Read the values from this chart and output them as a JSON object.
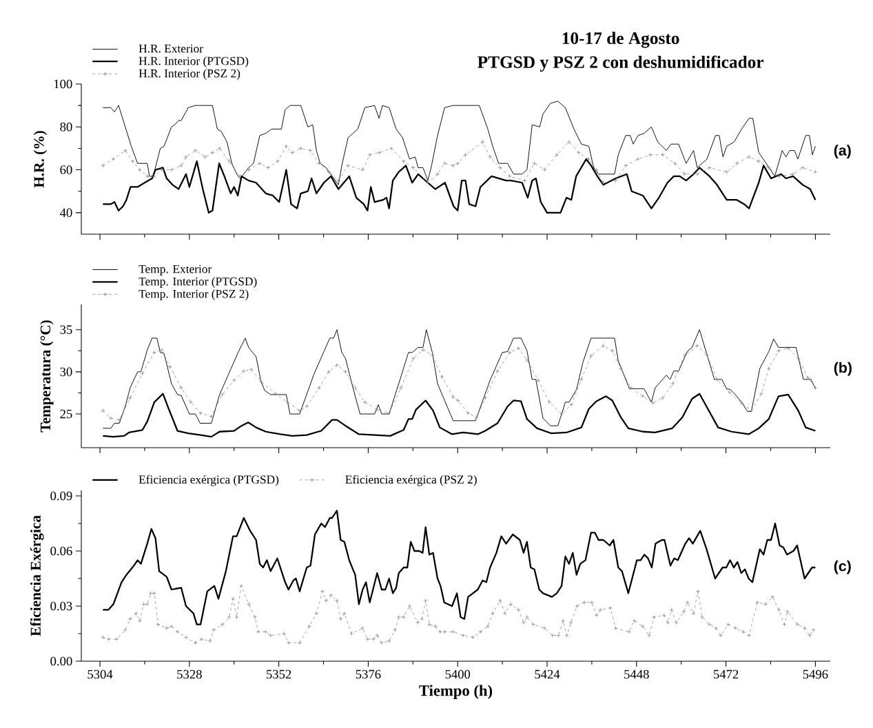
{
  "chart_data": [
    {
      "type": "line",
      "title": "10-17 de Agosto",
      "subtitle": "PTGSD y PSZ 2 con deshumidificador",
      "ylabel": "H.R. (%)",
      "annotations": [
        "(a)"
      ],
      "legend": "top left",
      "tick_labels": "y",
      "xlim": [
        5299,
        5500
      ],
      "xticks": [
        5304,
        5328,
        5352,
        5376,
        5400,
        5424,
        5448,
        5472,
        5496
      ],
      "ylim": [
        30,
        100
      ],
      "yticks": [
        40,
        60,
        80,
        100
      ],
      "series": [
        {
          "name": "H.R. Exterior",
          "color": "#000000",
          "x": [
            5304.8,
            5306.9,
            5307.9,
            5309,
            5310.8,
            5312.4,
            5314.1,
            5316.7,
            5317.3,
            5318.3,
            5320.2,
            5321.2,
            5323.2,
            5324.1,
            5325.1,
            5325.8,
            5327.7,
            5329.6,
            5331.6,
            5334.2,
            5335.5,
            5336.5,
            5338.1,
            5339.4,
            5340.7,
            5341.7,
            5343.9,
            5345.2,
            5346.9,
            5348.5,
            5350.1,
            5352.7,
            5353.7,
            5355,
            5357.9,
            5359.8,
            5361.1,
            5362.1,
            5363.1,
            5364.7,
            5368,
            5368.9,
            5370.6,
            5371.9,
            5373.2,
            5375.1,
            5377.7,
            5378.9,
            5379.8,
            5381.6,
            5383.5,
            5385.2,
            5387.1,
            5388.6,
            5389.4,
            5390.7,
            5392,
            5393,
            5394.6,
            5396.5,
            5398.8,
            5405.8,
            5408.1,
            5409.4,
            5411,
            5413.4,
            5415,
            5417.3,
            5418.6,
            5420,
            5422,
            5422.9,
            5424.9,
            5426.9,
            5428.9,
            5431.2,
            5433.2,
            5435.2,
            5436.5,
            5437.8,
            5442.1,
            5443.1,
            5445.1,
            5446.3,
            5447.1,
            5448.4,
            5450,
            5452,
            5453.7,
            5456,
            5457.3,
            5459.3,
            5461.3,
            5463.3,
            5464.3,
            5466.9,
            5469.2,
            5470.2,
            5471.2,
            5472.2,
            5474.2,
            5476.2,
            5478.2,
            5479.2,
            5480.8,
            5482.8,
            5485.1,
            5487.1,
            5488.1,
            5489.1,
            5490.4,
            5491.3,
            5493.4,
            5494.4,
            5495.2,
            5496
          ],
          "values": [
            89,
            89,
            87,
            90,
            80,
            71,
            63,
            63,
            57,
            57,
            70,
            71,
            80,
            81,
            83,
            83,
            89,
            90,
            90,
            90,
            79,
            78,
            73,
            63,
            58,
            56,
            61,
            63,
            76,
            77,
            79,
            79,
            88,
            90,
            90,
            80,
            81,
            69,
            63,
            61,
            53,
            62,
            75,
            77,
            79,
            89,
            90,
            84,
            90,
            89,
            79,
            75,
            65,
            66,
            61,
            61,
            55,
            62,
            76,
            89,
            90,
            90,
            79,
            71,
            63,
            63,
            58,
            58,
            60,
            81,
            80,
            86,
            91,
            92,
            89,
            79,
            72,
            71,
            61,
            58,
            58,
            67,
            76,
            76,
            72,
            76,
            77,
            80,
            73,
            69,
            72,
            72,
            63,
            69,
            61,
            65,
            76,
            76,
            66,
            71,
            73,
            79,
            84,
            84,
            68,
            63,
            57,
            69,
            66,
            69,
            69,
            65,
            76,
            76,
            67,
            71
          ]
        },
        {
          "name": "H.R. Interior (PTGSD)",
          "color": "#000000",
          "x": [
            5304.8,
            5306.9,
            5307.9,
            5309,
            5310.2,
            5311.1,
            5312.2,
            5314.1,
            5316,
            5318,
            5318.9,
            5320.9,
            5321.9,
            5323.5,
            5325.1,
            5327.1,
            5328,
            5330,
            5331.6,
            5333.2,
            5334.2,
            5336,
            5337.4,
            5339.1,
            5340,
            5341,
            5342,
            5343.9,
            5345.9,
            5348.5,
            5350.4,
            5352.1,
            5354,
            5355.3,
            5356.9,
            5357.9,
            5359.8,
            5360.8,
            5362.1,
            5364.1,
            5366,
            5368,
            5370.9,
            5372.8,
            5374.8,
            5375.8,
            5376.7,
            5377.7,
            5380,
            5380.9,
            5381.6,
            5382.6,
            5384.2,
            5386.1,
            5387.8,
            5389.4,
            5392,
            5394,
            5396.6,
            5398.9,
            5400,
            5401.1,
            5402.1,
            5403.1,
            5404.8,
            5406.1,
            5409.1,
            5413,
            5414.3,
            5417.3,
            5418.8,
            5420,
            5421,
            5422.3,
            5424,
            5427.6,
            5429.2,
            5430.5,
            5431.8,
            5434.5,
            5435.8,
            5437.5,
            5439.1,
            5442.4,
            5445.4,
            5446.7,
            5449.7,
            5452,
            5454,
            5456.3,
            5458,
            5459.6,
            5461.3,
            5463.3,
            5464.9,
            5467.6,
            5469.6,
            5472.2,
            5474.9,
            5476.9,
            5478.2,
            5479.5,
            5480.8,
            5482.1,
            5484.1,
            5486.8,
            5488.1,
            5490,
            5492.6,
            5494.6,
            5496
          ],
          "values": [
            44,
            44,
            45,
            41,
            43,
            46,
            52,
            52,
            54,
            56,
            60,
            61,
            56,
            53,
            51,
            58,
            52,
            64,
            51,
            40,
            41,
            63,
            57,
            49,
            52,
            48,
            57,
            55,
            54,
            49,
            48,
            45,
            60,
            44,
            42,
            49,
            50,
            56,
            49,
            54,
            57,
            51,
            57,
            47,
            44,
            41,
            52,
            45,
            46,
            47,
            42,
            55,
            59,
            62,
            54,
            58,
            54,
            51,
            54,
            43,
            41,
            55,
            55,
            44,
            43,
            52,
            57,
            55,
            55,
            54,
            47,
            55,
            56,
            45,
            40,
            40,
            47,
            46,
            57,
            65,
            62,
            57,
            53,
            56,
            58,
            50,
            48,
            42,
            47,
            54,
            57,
            57,
            55,
            58,
            61,
            57,
            53,
            46,
            46,
            44,
            42,
            48,
            54,
            62,
            56,
            58,
            56,
            57,
            53,
            51,
            46
          ]
        },
        {
          "name": "H.R. Interior (PSZ 2)",
          "color": "#8c8c8c",
          "marker": "cross",
          "line_style": "dashed",
          "x": [
            5304.8,
            5307.6,
            5310.8,
            5312.8,
            5314.7,
            5316.7,
            5318.6,
            5320.6,
            5323.2,
            5325.8,
            5327.1,
            5329.6,
            5332.2,
            5334.2,
            5336.1,
            5338.7,
            5341.3,
            5343.9,
            5346.9,
            5349.1,
            5351.7,
            5354,
            5355.6,
            5357.9,
            5360.5,
            5362.8,
            5365.4,
            5368,
            5370.6,
            5374.5,
            5376.4,
            5379,
            5382.2,
            5385.5,
            5388.1,
            5392,
            5394.6,
            5396.5,
            5398.8,
            5400,
            5402.1,
            5406.7,
            5408.7,
            5411.4,
            5414,
            5418,
            5420.6,
            5423.3,
            5426.6,
            5429.9,
            5432.5,
            5435.2,
            5437.2,
            5439.1,
            5442.4,
            5445.1,
            5448.4,
            5451.7,
            5455,
            5458.3,
            5460.9,
            5464.3,
            5467.6,
            5472.2,
            5474.9,
            5478.2,
            5480.8,
            5483.5,
            5486.2,
            5490,
            5492.6,
            5496
          ],
          "values": [
            62,
            65,
            69,
            64,
            60,
            57,
            57,
            60,
            60,
            62,
            66,
            69,
            66,
            68,
            70,
            64,
            57,
            60,
            63,
            61,
            64,
            71,
            68,
            70,
            69,
            63,
            59,
            55,
            62,
            60,
            67,
            68,
            70,
            64,
            61,
            54,
            58,
            63,
            62,
            63,
            67,
            73,
            66,
            61,
            57,
            55,
            63,
            60,
            67,
            73,
            68,
            65,
            60,
            54,
            55,
            62,
            65,
            67,
            67,
            63,
            58,
            58,
            61,
            59,
            63,
            66,
            64,
            61,
            57,
            58,
            61,
            59
          ]
        }
      ]
    },
    {
      "type": "line",
      "ylabel": "Temperatura (°C)",
      "annotations": [
        "(b)"
      ],
      "legend": "top left",
      "tick_labels": "y",
      "xlim": [
        5299,
        5500
      ],
      "xticks": [
        5304,
        5328,
        5352,
        5376,
        5400,
        5424,
        5448,
        5472,
        5496
      ],
      "ylim": [
        21,
        38
      ],
      "yticks": [
        25,
        30,
        35
      ],
      "series": [
        {
          "name": "Temp. Exterior",
          "color": "#000000",
          "x": [
            5304.8,
            5306.9,
            5307.9,
            5309.2,
            5310.8,
            5312.1,
            5314.1,
            5315,
            5316.7,
            5318,
            5319.3,
            5320.2,
            5321.2,
            5323.2,
            5324.8,
            5325.8,
            5328,
            5329.6,
            5330.9,
            5333.9,
            5336.1,
            5338.7,
            5341.3,
            5343,
            5343.9,
            5345.9,
            5347.2,
            5348.2,
            5349.8,
            5354,
            5355,
            5357.6,
            5361.5,
            5364.1,
            5365.7,
            5366.7,
            5367.6,
            5368.9,
            5369.9,
            5371.9,
            5373.8,
            5377.7,
            5378.7,
            5379.6,
            5381.6,
            5384.2,
            5386.8,
            5387.8,
            5389.4,
            5390.7,
            5391.6,
            5393.2,
            5394.6,
            5396.5,
            5398.8,
            5404.8,
            5408.7,
            5412,
            5413.4,
            5415,
            5417,
            5418.6,
            5420,
            5421,
            5422.9,
            5424.9,
            5426.9,
            5428.9,
            5429.9,
            5431.9,
            5433.6,
            5435.8,
            5442.1,
            5443.1,
            5446.1,
            5450,
            5452,
            5453,
            5456,
            5457,
            5458,
            5459.3,
            5461.6,
            5462.9,
            5464.9,
            5468.9,
            5470.9,
            5472.2,
            5473.2,
            5474.5,
            5476.2,
            5477.8,
            5478.8,
            5481.1,
            5483.5,
            5484.8,
            5486.1,
            5490.8,
            5492.8,
            5494.8,
            5496
          ],
          "values": [
            23.3,
            23.3,
            23.9,
            23.9,
            25.9,
            28.1,
            30,
            30,
            32.6,
            34,
            34,
            32.3,
            32.2,
            28.6,
            27.3,
            27.2,
            25,
            25,
            23.9,
            23.9,
            27.3,
            29.9,
            32.5,
            34,
            32.9,
            31.8,
            28.9,
            27.8,
            27.3,
            27.3,
            25,
            25,
            29.8,
            32.4,
            34,
            34,
            35,
            32.3,
            31.6,
            28.1,
            25,
            25,
            26.1,
            25,
            25,
            28.6,
            32.3,
            32.3,
            32.9,
            32.9,
            35,
            32.3,
            28.6,
            26.6,
            24.2,
            24.2,
            29,
            32.3,
            32.4,
            34,
            34,
            32.5,
            29.1,
            29.1,
            24.5,
            23.6,
            23.6,
            26.4,
            26.4,
            27.9,
            31.1,
            34,
            34,
            31.3,
            28,
            28,
            26.4,
            28.1,
            29.6,
            29.1,
            30.1,
            30.1,
            32.4,
            32.9,
            35,
            29.1,
            29.1,
            28,
            27.9,
            27.3,
            26.4,
            25.3,
            25.3,
            30.4,
            32.4,
            33.9,
            32.9,
            32.9,
            29.1,
            29.1,
            28
          ]
        },
        {
          "name": "Temp. Interior (PTGSD)",
          "color": "#000000",
          "x": [
            5304.8,
            5307.6,
            5310.5,
            5311.8,
            5314.1,
            5315.4,
            5316.7,
            5318.6,
            5320.9,
            5322.2,
            5324.8,
            5327.7,
            5331,
            5333.9,
            5336.1,
            5340,
            5342,
            5343.8,
            5345.9,
            5348.5,
            5352.4,
            5355.6,
            5359.5,
            5363.4,
            5366.3,
            5367.6,
            5369.9,
            5373.5,
            5377.7,
            5381.9,
            5385.5,
            5386.8,
            5387.8,
            5388.8,
            5391.4,
            5393.4,
            5395.2,
            5398.5,
            5401.5,
            5405.4,
            5407.4,
            5410.7,
            5413.4,
            5415,
            5417,
            5418.6,
            5421.3,
            5425.2,
            5429.2,
            5433.2,
            5435.2,
            5437.2,
            5439.8,
            5441.5,
            5443.8,
            5445.8,
            5449.7,
            5453,
            5457.6,
            5460.3,
            5462.9,
            5464.9,
            5466.9,
            5469.9,
            5473.5,
            5478.1,
            5480.8,
            5483.5,
            5486.1,
            5488.7,
            5491.4,
            5493.4,
            5496
          ],
          "values": [
            22.4,
            22.3,
            22.4,
            22.8,
            23,
            23.1,
            24.1,
            26.4,
            27.4,
            25.9,
            23,
            22.7,
            22.5,
            22.3,
            22.9,
            23,
            23.6,
            24,
            23.4,
            22.9,
            22.6,
            22.4,
            22.5,
            23,
            24.3,
            24.3,
            23.6,
            22.6,
            22.5,
            22.4,
            23.1,
            24.4,
            24.4,
            25.5,
            26.6,
            25.4,
            23.4,
            22.6,
            22.8,
            22.6,
            23,
            23.9,
            25.9,
            26.6,
            26.5,
            24.4,
            23.3,
            22.7,
            22.8,
            23.4,
            25.6,
            26.5,
            27.1,
            26.6,
            24.6,
            23.3,
            22.9,
            22.8,
            23.3,
            24.6,
            26.8,
            27.4,
            25.8,
            23.4,
            22.9,
            22.6,
            23.3,
            24.4,
            27.1,
            27.3,
            25.4,
            23.4,
            23
          ]
        },
        {
          "name": "Temp. Interior (PSZ 2)",
          "color": "#8c8c8c",
          "marker": "cross",
          "line_style": "dashed",
          "x": [
            5304.8,
            5306.9,
            5309.2,
            5312.1,
            5315.4,
            5318.6,
            5320.6,
            5322.8,
            5325.8,
            5328.4,
            5331,
            5333.9,
            5336.8,
            5340,
            5342.6,
            5344.6,
            5347.2,
            5351.1,
            5354.3,
            5357.6,
            5359.5,
            5362.8,
            5365.4,
            5367.6,
            5369.9,
            5372.5,
            5375.1,
            5378.4,
            5381.6,
            5384.8,
            5388.1,
            5390.7,
            5393.2,
            5395.8,
            5398.8,
            5400.1,
            5402.8,
            5405.1,
            5407.4,
            5410.7,
            5414,
            5416.3,
            5418.6,
            5421.6,
            5424.6,
            5427.9,
            5430.5,
            5433.2,
            5435.8,
            5439.1,
            5441.5,
            5443.8,
            5446.5,
            5449.7,
            5452.4,
            5455,
            5457.7,
            5461,
            5464.3,
            5466.9,
            5469.6,
            5472.9,
            5476.2,
            5478.8,
            5481.5,
            5483.5,
            5486.1,
            5488.7,
            5491.4,
            5494,
            5496
          ],
          "values": [
            25.4,
            24.5,
            24.3,
            26.9,
            29.8,
            32.3,
            32.6,
            30.6,
            28.1,
            26.4,
            25.1,
            24.7,
            27.3,
            29,
            30.1,
            30.3,
            28.9,
            27.4,
            26.4,
            25.4,
            25.9,
            28.1,
            30,
            30.8,
            30,
            28.1,
            26.4,
            25.5,
            25.1,
            28.1,
            31.6,
            32.6,
            32,
            29.4,
            27,
            26.6,
            25.1,
            24.6,
            26.9,
            30.1,
            32.3,
            32.8,
            31.4,
            29,
            26.4,
            25,
            26.1,
            29.1,
            31.9,
            33.1,
            32.5,
            30.4,
            28.1,
            27.1,
            26.3,
            26.9,
            28.6,
            32,
            33.1,
            32,
            29.1,
            27.6,
            26.3,
            25.4,
            27.4,
            30.4,
            32.5,
            32.8,
            31.6,
            29.3,
            28.1
          ]
        }
      ]
    },
    {
      "type": "line",
      "xlabel": "Tiempo (h)",
      "ylabel": "Eficiencia Exérgica",
      "annotations": [
        "(c)"
      ],
      "legend": "top left",
      "xlim": [
        5299,
        5500
      ],
      "xticks": [
        5304,
        5328,
        5352,
        5376,
        5400,
        5424,
        5448,
        5472,
        5496
      ],
      "ylim": [
        0,
        0.093
      ],
      "yticks": [
        {
          "value": 0,
          "label": "0.00"
        },
        {
          "value": 0.03,
          "label": "0.03"
        },
        {
          "value": 0.06,
          "label": "0.06"
        },
        {
          "value": 0.09,
          "label": "0.09"
        }
      ],
      "series": [
        {
          "name": "Eficiencia exérgica (PTGSD)",
          "color": "#000000",
          "x": [
            5304.8,
            5306.3,
            5307.6,
            5309.8,
            5311.1,
            5313.1,
            5314.1,
            5315,
            5316.7,
            5317.8,
            5318.9,
            5319.9,
            5321.2,
            5321.9,
            5323.2,
            5325.8,
            5327.1,
            5329.1,
            5330,
            5331,
            5331.6,
            5332.8,
            5334.7,
            5335.8,
            5337.8,
            5339.7,
            5340.7,
            5342.6,
            5344.3,
            5345.9,
            5346.9,
            5347.8,
            5348.8,
            5349.8,
            5351.6,
            5353.7,
            5354.6,
            5355.9,
            5356.6,
            5357.6,
            5359.5,
            5360.5,
            5361.7,
            5363.4,
            5364.4,
            5365.7,
            5366.3,
            5367.6,
            5368.6,
            5369.6,
            5370.9,
            5372.5,
            5373.5,
            5374.5,
            5375.4,
            5376.4,
            5378.4,
            5379.6,
            5380.6,
            5381.6,
            5382.6,
            5383.5,
            5384.2,
            5385.5,
            5386.5,
            5387.4,
            5388.4,
            5389.7,
            5390.6,
            5391.4,
            5392.4,
            5393.4,
            5394.6,
            5395.4,
            5396.4,
            5398.5,
            5399.8,
            5400.8,
            5401.8,
            5402.8,
            5404.1,
            5405.4,
            5406.7,
            5407.7,
            5408.7,
            5410.4,
            5411.7,
            5413,
            5414.8,
            5416.7,
            5417.7,
            5418.6,
            5419.6,
            5420.6,
            5421.9,
            5422.9,
            5425.3,
            5426.6,
            5427.9,
            5428.9,
            5429.9,
            5430.9,
            5431.9,
            5432.9,
            5434.3,
            5435.8,
            5436.8,
            5437.8,
            5439.1,
            5440.8,
            5441.8,
            5443.1,
            5444.1,
            5445.8,
            5448.1,
            5449.1,
            5450.1,
            5451.1,
            5452.1,
            5453.1,
            5454.8,
            5455.5,
            5457.1,
            5458.1,
            5459.1,
            5461.1,
            5462.1,
            5463.1,
            5465.1,
            5466.8,
            5469.1,
            5471.1,
            5472.1,
            5473.1,
            5474.1,
            5475.1,
            5476.1,
            5477.1,
            5478.1,
            5479.1,
            5481.1,
            5482.1,
            5483.1,
            5484.1,
            5485.2,
            5486.4,
            5487.4,
            5488.4,
            5490.1,
            5491.1,
            5493.1,
            5495.1,
            5496
          ],
          "values": [
            0.028,
            0.028,
            0.031,
            0.043,
            0.047,
            0.052,
            0.055,
            0.053,
            0.064,
            0.072,
            0.067,
            0.049,
            0.047,
            0.046,
            0.039,
            0.04,
            0.03,
            0.026,
            0.02,
            0.02,
            0.026,
            0.038,
            0.041,
            0.034,
            0.049,
            0.068,
            0.068,
            0.078,
            0.071,
            0.066,
            0.053,
            0.051,
            0.055,
            0.049,
            0.056,
            0.043,
            0.039,
            0.044,
            0.045,
            0.038,
            0.051,
            0.052,
            0.069,
            0.075,
            0.073,
            0.078,
            0.078,
            0.082,
            0.066,
            0.065,
            0.055,
            0.047,
            0.031,
            0.039,
            0.043,
            0.032,
            0.048,
            0.039,
            0.039,
            0.045,
            0.037,
            0.04,
            0.048,
            0.051,
            0.051,
            0.065,
            0.06,
            0.06,
            0.059,
            0.073,
            0.058,
            0.059,
            0.045,
            0.041,
            0.032,
            0.03,
            0.037,
            0.024,
            0.023,
            0.035,
            0.037,
            0.039,
            0.044,
            0.043,
            0.051,
            0.059,
            0.068,
            0.064,
            0.069,
            0.066,
            0.059,
            0.065,
            0.051,
            0.05,
            0.039,
            0.037,
            0.035,
            0.037,
            0.041,
            0.057,
            0.053,
            0.059,
            0.047,
            0.053,
            0.055,
            0.07,
            0.07,
            0.066,
            0.066,
            0.063,
            0.066,
            0.051,
            0.049,
            0.037,
            0.055,
            0.055,
            0.058,
            0.056,
            0.051,
            0.064,
            0.066,
            0.066,
            0.052,
            0.056,
            0.055,
            0.064,
            0.067,
            0.064,
            0.071,
            0.061,
            0.045,
            0.051,
            0.051,
            0.055,
            0.051,
            0.054,
            0.048,
            0.05,
            0.045,
            0.043,
            0.061,
            0.058,
            0.066,
            0.066,
            0.075,
            0.063,
            0.062,
            0.058,
            0.06,
            0.063,
            0.045,
            0.051,
            0.051
          ]
        },
        {
          "name": "Eficiencia exérgica (PSZ 2)",
          "color": "#8c8c8c",
          "marker": "cross",
          "line_style": "dashed",
          "x": [
            5304.8,
            5306.3,
            5308.5,
            5310.8,
            5312.1,
            5313.7,
            5314.7,
            5315.7,
            5316.7,
            5317.6,
            5318.6,
            5319.6,
            5321.9,
            5323.2,
            5324.8,
            5327.1,
            5329.6,
            5331.3,
            5333.5,
            5334.5,
            5336.8,
            5338.7,
            5339.7,
            5340.7,
            5341.9,
            5344,
            5345.6,
            5346.5,
            5348.5,
            5349.8,
            5353.4,
            5354.6,
            5357.6,
            5360.2,
            5362.1,
            5363.7,
            5364.7,
            5366,
            5367.6,
            5368.6,
            5369.6,
            5371.5,
            5374.5,
            5375.8,
            5377.4,
            5378.4,
            5379.6,
            5381.6,
            5383.2,
            5384.2,
            5385.5,
            5387.1,
            5389.3,
            5390.4,
            5391.4,
            5392.4,
            5394,
            5395.3,
            5396.5,
            5398.8,
            5401.5,
            5404.1,
            5406.1,
            5408.1,
            5409.4,
            5411.4,
            5412.7,
            5414.3,
            5416.3,
            5417.7,
            5418.6,
            5420.3,
            5423.3,
            5425.5,
            5427.1,
            5428.3,
            5429.3,
            5430.4,
            5432,
            5434,
            5436,
            5437.3,
            5438.3,
            5441,
            5442.4,
            5446,
            5447.4,
            5449.7,
            5451.4,
            5452.7,
            5455.4,
            5456.4,
            5457.4,
            5458.7,
            5460.7,
            5461.7,
            5463.3,
            5464.5,
            5465.6,
            5467.6,
            5469.3,
            5470.6,
            5472.6,
            5474.6,
            5476.6,
            5478.2,
            5480.4,
            5482.6,
            5484.5,
            5486.2,
            5487.7,
            5488.5,
            5491.2,
            5493.1,
            5494.5,
            5495.5
          ],
          "values": [
            0.013,
            0.012,
            0.012,
            0.017,
            0.023,
            0.026,
            0.022,
            0.031,
            0.031,
            0.037,
            0.037,
            0.02,
            0.018,
            0.019,
            0.016,
            0.013,
            0.01,
            0.012,
            0.011,
            0.017,
            0.02,
            0.024,
            0.034,
            0.024,
            0.041,
            0.031,
            0.024,
            0.016,
            0.016,
            0.014,
            0.015,
            0.01,
            0.01,
            0.019,
            0.026,
            0.038,
            0.033,
            0.036,
            0.033,
            0.023,
            0.026,
            0.015,
            0.018,
            0.012,
            0.012,
            0.014,
            0.01,
            0.011,
            0.017,
            0.024,
            0.024,
            0.03,
            0.021,
            0.023,
            0.033,
            0.02,
            0.019,
            0.016,
            0.016,
            0.016,
            0.014,
            0.013,
            0.016,
            0.019,
            0.026,
            0.033,
            0.026,
            0.031,
            0.028,
            0.021,
            0.024,
            0.02,
            0.018,
            0.014,
            0.014,
            0.022,
            0.014,
            0.021,
            0.03,
            0.032,
            0.032,
            0.025,
            0.028,
            0.029,
            0.018,
            0.016,
            0.022,
            0.019,
            0.014,
            0.024,
            0.025,
            0.021,
            0.028,
            0.021,
            0.027,
            0.032,
            0.026,
            0.038,
            0.024,
            0.02,
            0.018,
            0.014,
            0.02,
            0.018,
            0.016,
            0.014,
            0.032,
            0.031,
            0.035,
            0.028,
            0.02,
            0.027,
            0.02,
            0.018,
            0.014,
            0.017
          ]
        }
      ]
    }
  ]
}
